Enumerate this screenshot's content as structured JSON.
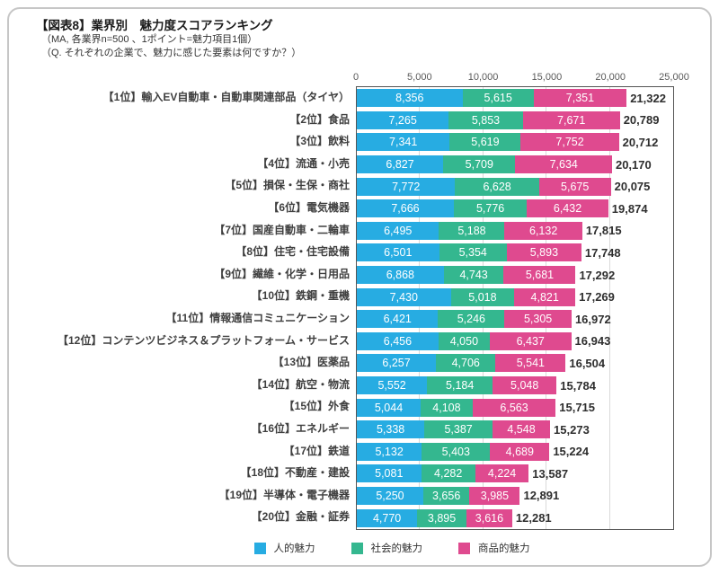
{
  "header": {
    "title": "【図表8】業界別　魅力度スコアランキング",
    "subtitle1": "（MA, 各業界n=500 、1ポイント=魅力項目1個）",
    "subtitle2": "（Q. それぞれの企業で、魅力に感じた要素は何ですか？）"
  },
  "chart_data": {
    "type": "bar",
    "orientation": "horizontal",
    "stacked": true,
    "title": "業界別 魅力度スコアランキング",
    "xlabel": "",
    "ylabel": "",
    "xlim": [
      0,
      25000
    ],
    "grid": true,
    "legend_position": "bottom",
    "axis_ticks": [
      "0",
      "5,000",
      "10,000",
      "15,000",
      "20,000",
      "25,000"
    ],
    "categories": [
      "【1位】輸入EV自動車・自動車関連部品（タイヤ）",
      "【2位】食品",
      "【3位】飲料",
      "【4位】流通・小売",
      "【5位】損保・生保・商社",
      "【6位】電気機器",
      "【7位】国産自動車・二輪車",
      "【8位】住宅・住宅設備",
      "【9位】繊維・化学・日用品",
      "【10位】鉄鋼・重機",
      "【11位】情報通信コミュニケーション",
      "【12位】コンテンツビジネス＆プラットフォーム・サービス",
      "【13位】医薬品",
      "【14位】航空・物流",
      "【15位】外食",
      "【16位】エネルギー",
      "【17位】鉄道",
      "【18位】不動産・建設",
      "【19位】半導体・電子機器",
      "【20位】金融・証券"
    ],
    "series": [
      {
        "key": "human",
        "name": "人的魅力",
        "color": "#27ACE2",
        "values": [
          8356,
          7265,
          7341,
          6827,
          7772,
          7666,
          6495,
          6501,
          6868,
          7430,
          6421,
          6456,
          6257,
          5552,
          5044,
          5338,
          5132,
          5081,
          5250,
          4770
        ]
      },
      {
        "key": "social",
        "name": "社会的魅力",
        "color": "#34B78F",
        "values": [
          5615,
          5853,
          5619,
          5709,
          6628,
          5776,
          5188,
          5354,
          4743,
          5018,
          5246,
          4050,
          4706,
          5184,
          4108,
          5387,
          5403,
          4282,
          3656,
          3895
        ]
      },
      {
        "key": "product",
        "name": "商品的魅力",
        "color": "#DF4A8F",
        "values": [
          7351,
          7671,
          7752,
          7634,
          5675,
          6432,
          6132,
          5893,
          5681,
          4821,
          5305,
          6437,
          5541,
          5048,
          6563,
          4548,
          4689,
          4224,
          3985,
          3616
        ]
      }
    ],
    "totals": [
      21322,
      20789,
      20712,
      20170,
      20075,
      19874,
      17815,
      17748,
      17292,
      17269,
      16972,
      16943,
      16504,
      15784,
      15715,
      15273,
      15224,
      13587,
      12891,
      12281
    ]
  }
}
